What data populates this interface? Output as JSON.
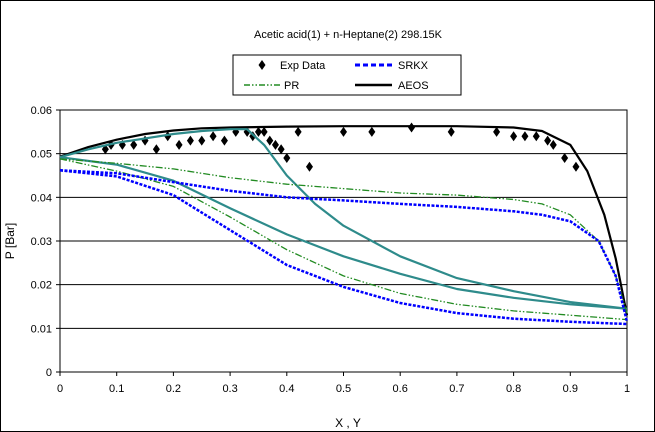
{
  "chart_data": {
    "type": "line",
    "title": "Acetic acid(1) + n-Heptane(2) 298.15K",
    "xlabel": "X , Y",
    "ylabel": "P [Bar]",
    "xlim": [
      0,
      1
    ],
    "ylim": [
      0,
      0.06
    ],
    "x_ticks": [
      "0",
      "0.1",
      "0.2",
      "0.3",
      "0.4",
      "0.5",
      "0.6",
      "0.7",
      "0.8",
      "0.9",
      "1"
    ],
    "y_ticks": [
      "0",
      "0.01",
      "0.02",
      "0.03",
      "0.04",
      "0.05",
      "0.06"
    ],
    "grid": "horizontal",
    "legend_position": "top",
    "legend": [
      {
        "label": "Exp Data",
        "style": "diamond-marker",
        "color": "#000000"
      },
      {
        "label": "SRKX",
        "style": "dotted",
        "color": "#0000ff"
      },
      {
        "label": "PR",
        "style": "dash-dot",
        "color": "#228b22"
      },
      {
        "label": "AEOS",
        "style": "solid",
        "color": "#000000"
      }
    ],
    "series": [
      {
        "name": "Exp Data",
        "kind": "scatter",
        "color": "#000000",
        "points": [
          [
            0.08,
            0.051
          ],
          [
            0.09,
            0.052
          ],
          [
            0.11,
            0.052
          ],
          [
            0.13,
            0.052
          ],
          [
            0.15,
            0.053
          ],
          [
            0.17,
            0.051
          ],
          [
            0.19,
            0.054
          ],
          [
            0.21,
            0.052
          ],
          [
            0.23,
            0.053
          ],
          [
            0.25,
            0.053
          ],
          [
            0.27,
            0.054
          ],
          [
            0.29,
            0.053
          ],
          [
            0.31,
            0.055
          ],
          [
            0.33,
            0.055
          ],
          [
            0.34,
            0.054
          ],
          [
            0.35,
            0.055
          ],
          [
            0.36,
            0.055
          ],
          [
            0.37,
            0.053
          ],
          [
            0.38,
            0.052
          ],
          [
            0.39,
            0.051
          ],
          [
            0.4,
            0.049
          ],
          [
            0.42,
            0.055
          ],
          [
            0.44,
            0.047
          ],
          [
            0.5,
            0.055
          ],
          [
            0.55,
            0.055
          ],
          [
            0.62,
            0.056
          ],
          [
            0.69,
            0.055
          ],
          [
            0.77,
            0.055
          ],
          [
            0.8,
            0.054
          ],
          [
            0.82,
            0.054
          ],
          [
            0.84,
            0.054
          ],
          [
            0.86,
            0.053
          ],
          [
            0.87,
            0.052
          ],
          [
            0.89,
            0.049
          ],
          [
            0.91,
            0.047
          ]
        ]
      },
      {
        "name": "AEOS",
        "color": "#000000",
        "points": [
          [
            0,
            0.0493
          ],
          [
            0.05,
            0.0515
          ],
          [
            0.1,
            0.0532
          ],
          [
            0.15,
            0.0545
          ],
          [
            0.2,
            0.0553
          ],
          [
            0.25,
            0.0558
          ],
          [
            0.3,
            0.056
          ],
          [
            0.4,
            0.0562
          ],
          [
            0.5,
            0.0563
          ],
          [
            0.6,
            0.0563
          ],
          [
            0.7,
            0.0563
          ],
          [
            0.8,
            0.056
          ],
          [
            0.85,
            0.0552
          ],
          [
            0.9,
            0.052
          ],
          [
            0.93,
            0.046
          ],
          [
            0.96,
            0.036
          ],
          [
            0.98,
            0.026
          ],
          [
            1.0,
            0.013
          ]
        ]
      },
      {
        "name": "",
        "color": "#2e8b8b",
        "points": [
          [
            0,
            0.0492
          ],
          [
            0.05,
            0.051
          ],
          [
            0.1,
            0.0525
          ],
          [
            0.15,
            0.0535
          ],
          [
            0.2,
            0.0545
          ],
          [
            0.25,
            0.0552
          ],
          [
            0.3,
            0.0556
          ],
          [
            0.33,
            0.0556
          ],
          [
            0.36,
            0.052
          ],
          [
            0.4,
            0.045
          ],
          [
            0.45,
            0.0385
          ],
          [
            0.5,
            0.0335
          ],
          [
            0.6,
            0.0265
          ],
          [
            0.7,
            0.0215
          ],
          [
            0.8,
            0.0185
          ],
          [
            0.9,
            0.016
          ],
          [
            1.0,
            0.0145
          ]
        ]
      },
      {
        "name": "",
        "color": "#2e8b8b",
        "points": [
          [
            0,
            0.0492
          ],
          [
            0.1,
            0.0475
          ],
          [
            0.2,
            0.0438
          ],
          [
            0.3,
            0.0375
          ],
          [
            0.4,
            0.0315
          ],
          [
            0.5,
            0.0265
          ],
          [
            0.6,
            0.0225
          ],
          [
            0.7,
            0.019
          ],
          [
            0.8,
            0.017
          ],
          [
            0.9,
            0.0155
          ],
          [
            1.0,
            0.0145
          ]
        ]
      },
      {
        "name": "PR",
        "color": "#228b22",
        "points": [
          [
            0,
            0.0488
          ],
          [
            0.1,
            0.0478
          ],
          [
            0.2,
            0.0465
          ],
          [
            0.3,
            0.0445
          ],
          [
            0.4,
            0.043
          ],
          [
            0.5,
            0.042
          ],
          [
            0.6,
            0.041
          ],
          [
            0.7,
            0.0405
          ],
          [
            0.8,
            0.0395
          ],
          [
            0.85,
            0.0385
          ],
          [
            0.9,
            0.036
          ],
          [
            0.95,
            0.03
          ],
          [
            0.98,
            0.022
          ],
          [
            1.0,
            0.0135
          ]
        ]
      },
      {
        "name": "PR",
        "color": "#228b22",
        "points": [
          [
            0,
            0.0488
          ],
          [
            0.1,
            0.046
          ],
          [
            0.2,
            0.0425
          ],
          [
            0.3,
            0.0355
          ],
          [
            0.4,
            0.028
          ],
          [
            0.5,
            0.022
          ],
          [
            0.6,
            0.018
          ],
          [
            0.7,
            0.0155
          ],
          [
            0.8,
            0.014
          ],
          [
            0.9,
            0.013
          ],
          [
            1.0,
            0.012
          ]
        ]
      },
      {
        "name": "SRKX",
        "color": "#0000ff",
        "points": [
          [
            0,
            0.0462
          ],
          [
            0.1,
            0.0455
          ],
          [
            0.2,
            0.0435
          ],
          [
            0.3,
            0.0415
          ],
          [
            0.4,
            0.04
          ],
          [
            0.5,
            0.0393
          ],
          [
            0.6,
            0.0385
          ],
          [
            0.7,
            0.0378
          ],
          [
            0.8,
            0.0368
          ],
          [
            0.85,
            0.036
          ],
          [
            0.9,
            0.0345
          ],
          [
            0.95,
            0.03
          ],
          [
            0.98,
            0.022
          ],
          [
            1.0,
            0.0115
          ]
        ]
      },
      {
        "name": "SRKX",
        "color": "#0000ff",
        "points": [
          [
            0,
            0.0462
          ],
          [
            0.1,
            0.0448
          ],
          [
            0.2,
            0.0405
          ],
          [
            0.3,
            0.0325
          ],
          [
            0.4,
            0.0245
          ],
          [
            0.5,
            0.0195
          ],
          [
            0.6,
            0.0158
          ],
          [
            0.7,
            0.0135
          ],
          [
            0.8,
            0.0122
          ],
          [
            0.9,
            0.0115
          ],
          [
            1.0,
            0.011
          ]
        ]
      }
    ]
  }
}
